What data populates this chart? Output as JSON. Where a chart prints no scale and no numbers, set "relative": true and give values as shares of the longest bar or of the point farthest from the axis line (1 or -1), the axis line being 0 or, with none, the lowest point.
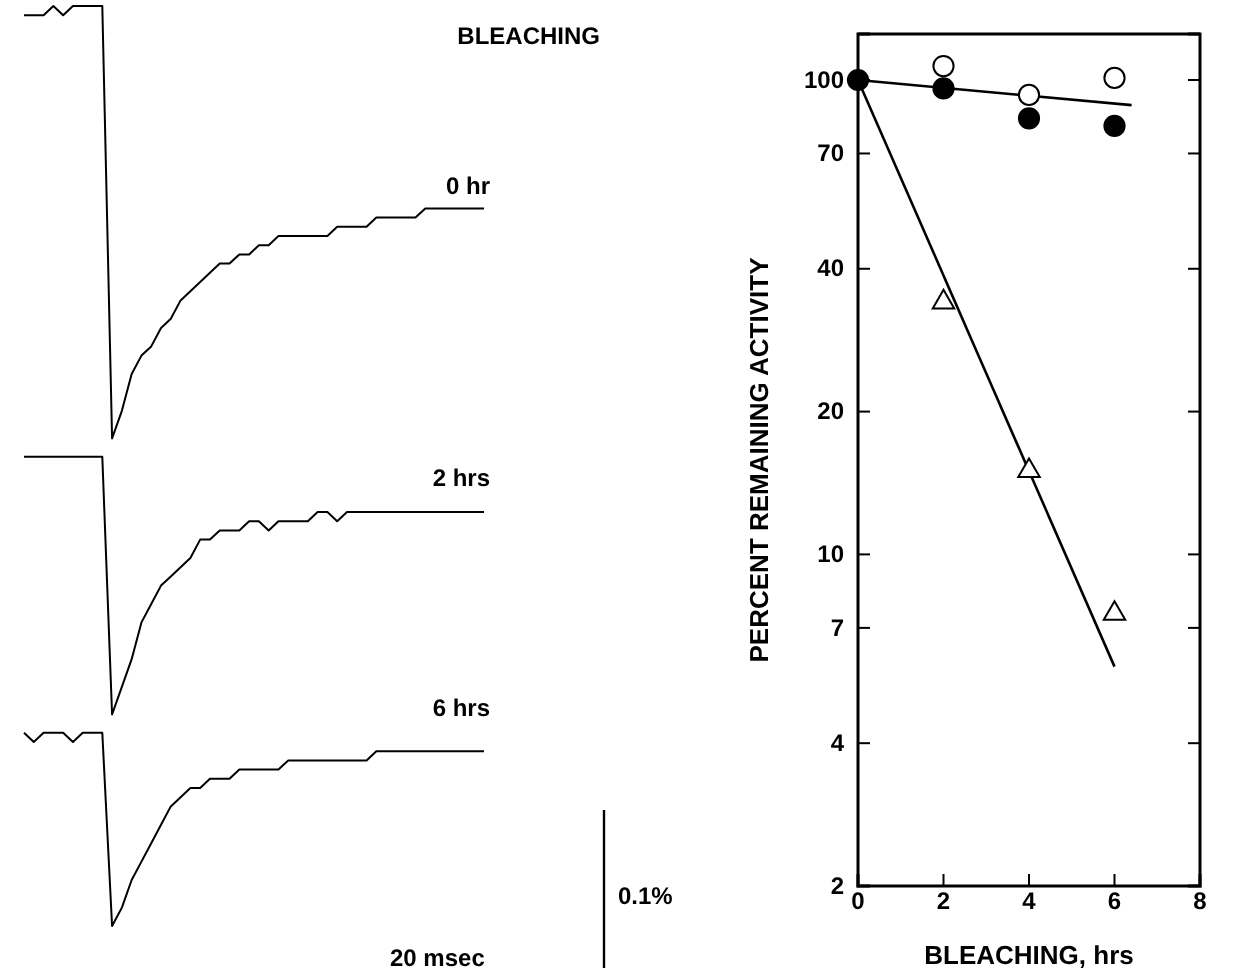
{
  "chart_data": [
    {
      "type": "line",
      "relative": true,
      "title": "BLEACHING",
      "categories": [
        null,
        null,
        null,
        null,
        null,
        null,
        null,
        null,
        null,
        null,
        null,
        null,
        null,
        null,
        null,
        null,
        null,
        null,
        null,
        null,
        null,
        null,
        null,
        null,
        null,
        null,
        null,
        null,
        null,
        null,
        null,
        null,
        null,
        null,
        null,
        null,
        null,
        null,
        null,
        null,
        null,
        null,
        null,
        null,
        null,
        null,
        null,
        null
      ],
      "series": [
        {
          "name": "0 hr",
          "color": "#000000",
          "values": [
            0.99,
            0.99,
            0.99,
            1.0,
            0.99,
            1.0,
            1.0,
            1.0,
            1.0,
            0.53,
            0.56,
            0.6,
            0.62,
            0.63,
            0.65,
            0.66,
            0.68,
            0.69,
            0.7,
            0.71,
            0.72,
            0.72,
            0.73,
            0.73,
            0.74,
            0.74,
            0.75,
            0.75,
            0.75,
            0.75,
            0.75,
            0.75,
            0.76,
            0.76,
            0.76,
            0.76,
            0.77,
            0.77,
            0.77,
            0.77,
            0.77,
            0.78,
            0.78,
            0.78,
            0.78,
            0.78,
            0.78,
            0.78
          ]
        },
        {
          "name": "2 hrs",
          "color": "#000000",
          "values": [
            0.51,
            0.51,
            0.51,
            0.51,
            0.51,
            0.51,
            0.51,
            0.51,
            0.51,
            0.23,
            0.26,
            0.29,
            0.33,
            0.35,
            0.37,
            0.38,
            0.39,
            0.4,
            0.42,
            0.42,
            0.43,
            0.43,
            0.43,
            0.44,
            0.44,
            0.43,
            0.44,
            0.44,
            0.44,
            0.44,
            0.45,
            0.45,
            0.44,
            0.45,
            0.45,
            0.45,
            0.45,
            0.45,
            0.45,
            0.45,
            0.45,
            0.45,
            0.45,
            0.45,
            0.45,
            0.45,
            0.45,
            0.45
          ]
        },
        {
          "name": "6 hrs",
          "color": "#000000",
          "values": [
            0.21,
            0.2,
            0.21,
            0.21,
            0.21,
            0.2,
            0.21,
            0.21,
            0.21,
            0.0,
            0.02,
            0.05,
            0.07,
            0.09,
            0.11,
            0.13,
            0.14,
            0.15,
            0.15,
            0.16,
            0.16,
            0.16,
            0.17,
            0.17,
            0.17,
            0.17,
            0.17,
            0.18,
            0.18,
            0.18,
            0.18,
            0.18,
            0.18,
            0.18,
            0.18,
            0.18,
            0.19,
            0.19,
            0.19,
            0.19,
            0.19,
            0.19,
            0.19,
            0.19,
            0.19,
            0.19,
            0.19,
            0.19
          ]
        }
      ],
      "annotations": [
        "20 msec",
        "0.1%"
      ]
    },
    {
      "type": "scatter",
      "xlabel": "BLEACHING, hrs",
      "ylabel": "PERCENT REMAINING ACTIVITY",
      "log": "y",
      "xlim": [
        0,
        8
      ],
      "xticks": [
        0,
        2,
        4,
        6,
        8
      ],
      "ylim": [
        2,
        125
      ],
      "yticks": [
        2,
        4,
        7,
        10,
        20,
        40,
        70,
        100
      ],
      "grid": false,
      "series": [
        {
          "color": "#000000",
          "marker": "circle",
          "x": [
            0,
            2,
            4,
            6
          ],
          "values": [
            100,
            96,
            83,
            80
          ]
        },
        {
          "color": "#ffffff",
          "marker": "circle",
          "x": [
            2,
            4,
            6
          ],
          "values": [
            107,
            93,
            101
          ]
        },
        {
          "color": "#ffffff",
          "marker": "triangle",
          "x": [
            2,
            4,
            6
          ],
          "values": [
            34,
            15,
            7.5
          ]
        },
        {
          "type": "line",
          "color": "#000000",
          "x": [
            0,
            6.4
          ],
          "values": [
            100,
            88.5
          ]
        },
        {
          "type": "line",
          "color": "#000000",
          "x": [
            0,
            6
          ],
          "values": [
            100,
            5.8
          ]
        }
      ]
    }
  ]
}
